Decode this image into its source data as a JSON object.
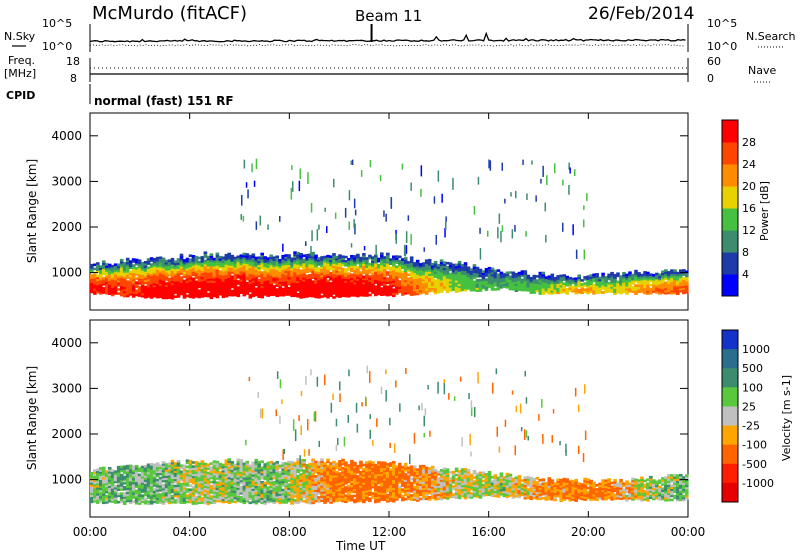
{
  "header": {
    "station": "McMurdo (fitACF)",
    "beam": "Beam 11",
    "date": "26/Feb/2014"
  },
  "info_panels": {
    "nsky_label": "N.Sky",
    "nsearch_label": "N.Search",
    "freq_label": "Freq.",
    "freq_unit": "[MHz]",
    "nave_label": "Nave",
    "cpid_label": "CPID",
    "cpid_text": "normal (fast) 151 RF",
    "noise_ticks": [
      "10^5",
      "10^0"
    ],
    "freq_ticks": [
      "18",
      "8"
    ],
    "nave_ticks": [
      "60",
      "0"
    ]
  },
  "chart_data": [
    {
      "type": "heatmap",
      "title": "Power",
      "xlabel": "Time UT",
      "ylabel": "Slant Range [km]",
      "x_ticks": [
        "00:00",
        "04:00",
        "08:00",
        "12:00",
        "16:00",
        "20:00",
        "00:00"
      ],
      "y_ticks": [
        "1000",
        "2000",
        "3000",
        "4000"
      ],
      "xlim_hours": [
        0,
        24
      ],
      "ylim_km": [
        180,
        4500
      ],
      "colorbar": {
        "label": "Power [dB]",
        "ticks": [
          "4",
          "8",
          "12",
          "16",
          "20",
          "24",
          "28"
        ],
        "range": [
          0,
          30
        ],
        "colors": [
          "#0000ff",
          "#1e3ca8",
          "#3c8c6e",
          "#46c040",
          "#e6d200",
          "#ff8c00",
          "#ff4600",
          "#ff0000"
        ]
      },
      "scatter_band": {
        "hours": [
          0,
          1.5,
          3,
          4.5,
          6,
          7.5,
          9,
          10.5,
          12,
          13.5,
          15,
          16.5,
          18,
          19.5,
          21,
          22.5,
          24
        ],
        "top_km": [
          1150,
          1250,
          1300,
          1380,
          1380,
          1350,
          1400,
          1350,
          1350,
          1250,
          1150,
          1000,
          950,
          900,
          950,
          1000,
          1050
        ],
        "bottom_km": [
          550,
          480,
          450,
          450,
          470,
          480,
          460,
          470,
          500,
          550,
          600,
          650,
          550,
          550,
          550,
          550,
          550
        ],
        "peak_db": [
          28,
          26,
          30,
          30,
          30,
          28,
          30,
          30,
          28,
          20,
          14,
          12,
          14,
          20,
          16,
          22,
          24
        ]
      }
    },
    {
      "type": "heatmap",
      "title": "Velocity",
      "xlabel": "Time UT",
      "ylabel": "Slant Range [km]",
      "x_ticks": [
        "00:00",
        "04:00",
        "08:00",
        "12:00",
        "16:00",
        "20:00",
        "00:00"
      ],
      "y_ticks": [
        "1000",
        "2000",
        "3000",
        "4000"
      ],
      "xlim_hours": [
        0,
        24
      ],
      "ylim_km": [
        180,
        4500
      ],
      "colorbar": {
        "label": "Velocity [m s-1]",
        "ticks": [
          "1000",
          "500",
          "100",
          "25",
          "-25",
          "-100",
          "-500",
          "-1000"
        ],
        "colors": [
          "#1432c8",
          "#2a6e8c",
          "#3c8c6e",
          "#5ac83c",
          "#c0c0c0",
          "#ffa500",
          "#ff6400",
          "#ff1e00",
          "#e60000"
        ]
      },
      "scatter_band": {
        "hours": [
          0,
          1.5,
          3,
          4.5,
          6,
          7.5,
          9,
          10.5,
          12,
          13.5,
          15,
          16.5,
          18,
          19.5,
          21,
          22.5,
          24
        ],
        "top_km": [
          1150,
          1300,
          1350,
          1400,
          1380,
          1350,
          1400,
          1350,
          1350,
          1250,
          1200,
          1100,
          1000,
          950,
          950,
          1000,
          1100
        ],
        "bottom_km": [
          500,
          480,
          480,
          480,
          500,
          480,
          500,
          520,
          520,
          560,
          600,
          650,
          550,
          550,
          550,
          560,
          560
        ],
        "dominant_velocity": [
          50,
          80,
          60,
          0,
          50,
          60,
          -60,
          -150,
          -120,
          -80,
          0,
          20,
          -80,
          -120,
          -100,
          40,
          60
        ]
      }
    }
  ]
}
